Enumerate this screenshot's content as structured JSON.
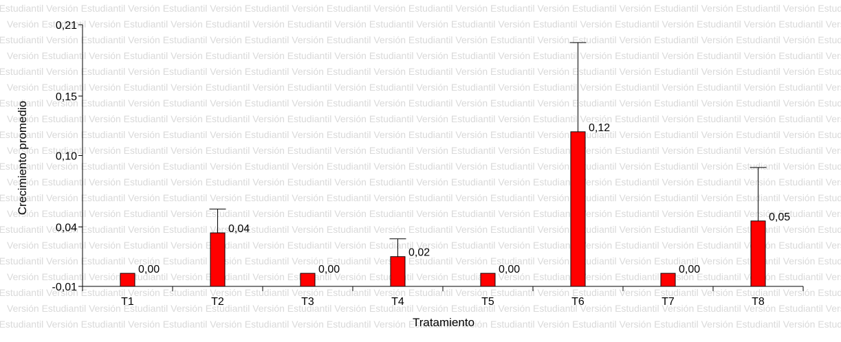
{
  "watermark_text": "Versión Estudiantil",
  "chart_data": {
    "type": "bar",
    "xlabel": "Tratamiento",
    "ylabel": "Crecimiento promedio",
    "ylim": [
      -0.01,
      0.21
    ],
    "yticks": [
      -0.01,
      0.04,
      0.1,
      0.15,
      0.21
    ],
    "ytick_labels": [
      "-0,01",
      "0,04",
      "0,10",
      "0,15",
      "0,21"
    ],
    "categories": [
      "T1",
      "T2",
      "T3",
      "T4",
      "T5",
      "T6",
      "T7",
      "T8"
    ],
    "values": [
      0.0,
      0.035,
      0.0,
      0.015,
      0.0,
      0.12,
      0.0,
      0.045
    ],
    "error_upper": [
      0.0,
      0.055,
      0.0,
      0.03,
      0.0,
      0.195,
      0.0,
      0.09
    ],
    "data_labels": [
      "0,00",
      "0,04",
      "0,00",
      "0,02",
      "0,00",
      "0,12",
      "0,00",
      "0,05"
    ],
    "bar_color": "#ff0000",
    "grid": false
  }
}
